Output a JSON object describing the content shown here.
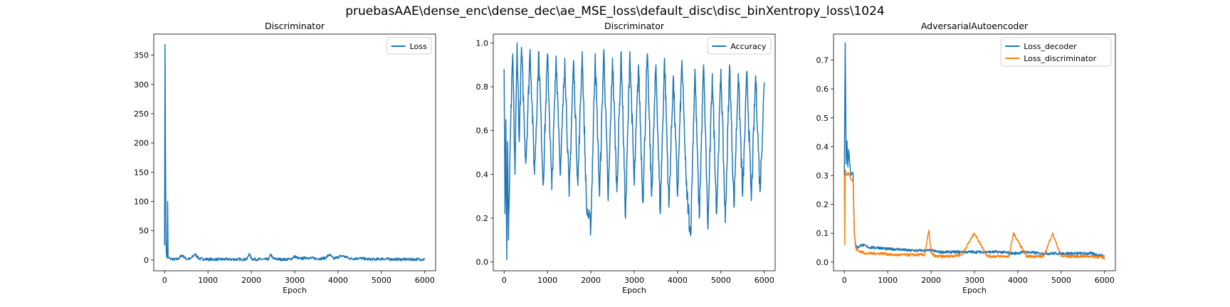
{
  "suptitle": "pruebasAAE\\dense_enc\\dense_dec\\ae_MSE_loss\\default_disc\\disc_binXentropy_loss\\1024",
  "chart_data": [
    {
      "type": "line",
      "title": "Discriminator",
      "xlabel": "Epoch",
      "ylabel": "",
      "xlim": [
        -250,
        6250
      ],
      "ylim": [
        -18.5,
        386
      ],
      "xticks": [
        0,
        1000,
        2000,
        3000,
        4000,
        5000,
        6000
      ],
      "yticks": [
        0,
        50,
        100,
        150,
        200,
        250,
        300,
        350
      ],
      "legend_position": "upper right",
      "series": [
        {
          "name": "Loss",
          "color": "#1f77b4",
          "x": [
            0,
            10,
            20,
            30,
            40,
            50,
            60,
            70,
            80,
            100,
            150,
            200,
            300,
            400,
            500,
            600,
            700,
            800,
            1000,
            1200,
            1500,
            1900,
            1950,
            2000,
            2100,
            2300,
            2400,
            2450,
            2500,
            2700,
            2900,
            3000,
            3100,
            3300,
            3500,
            3700,
            3800,
            3900,
            4000,
            4100,
            4300,
            4500,
            4700,
            4900,
            5000,
            5300,
            5600,
            5800,
            6000
          ],
          "values": [
            25,
            368,
            200,
            40,
            10,
            5,
            3,
            100,
            5,
            3,
            2,
            1,
            1,
            8,
            2,
            2,
            10,
            2,
            1,
            1,
            1,
            1,
            11,
            2,
            1,
            1,
            1,
            10,
            2,
            1,
            1,
            6,
            2,
            4,
            2,
            3,
            9,
            2,
            5,
            7,
            2,
            3,
            1,
            1,
            2,
            1,
            1,
            1,
            1
          ]
        }
      ]
    },
    {
      "type": "line",
      "title": "Discriminator",
      "xlabel": "Epoch",
      "ylabel": "",
      "xlim": [
        -250,
        6250
      ],
      "ylim": [
        -0.04,
        1.04
      ],
      "xticks": [
        0,
        1000,
        2000,
        3000,
        4000,
        5000,
        6000
      ],
      "yticks": [
        0.0,
        0.2,
        0.4,
        0.6,
        0.8,
        1.0
      ],
      "legend_position": "upper right",
      "series": [
        {
          "name": "Accuracy",
          "color": "#1f77b4",
          "x": [
            0,
            20,
            40,
            60,
            80,
            100,
            150,
            200,
            250,
            300,
            350,
            400,
            500,
            600,
            700,
            800,
            900,
            1000,
            1100,
            1200,
            1300,
            1400,
            1500,
            1600,
            1700,
            1800,
            1900,
            1950,
            2000,
            2100,
            2200,
            2300,
            2400,
            2500,
            2600,
            2700,
            2800,
            2900,
            3000,
            3100,
            3200,
            3300,
            3400,
            3500,
            3600,
            3700,
            3800,
            3900,
            4000,
            4100,
            4200,
            4300,
            4400,
            4500,
            4600,
            4700,
            4800,
            4900,
            5000,
            5100,
            5200,
            5300,
            5400,
            5500,
            5600,
            5700,
            5800,
            5900,
            6000
          ],
          "values": [
            0.88,
            0.22,
            0.65,
            0.01,
            0.55,
            0.1,
            0.62,
            0.95,
            0.4,
            1.0,
            0.55,
            0.98,
            0.45,
            0.97,
            0.4,
            0.96,
            0.35,
            0.95,
            0.33,
            0.94,
            0.4,
            0.93,
            0.3,
            0.92,
            0.35,
            0.96,
            0.25,
            0.2,
            0.16,
            0.95,
            0.3,
            0.97,
            0.28,
            0.93,
            0.32,
            0.96,
            0.2,
            0.96,
            0.35,
            0.9,
            0.27,
            0.95,
            0.3,
            0.9,
            0.22,
            0.93,
            0.25,
            0.85,
            0.3,
            0.92,
            0.35,
            0.12,
            0.88,
            0.2,
            0.9,
            0.15,
            0.86,
            0.22,
            0.88,
            0.18,
            0.9,
            0.25,
            0.86,
            0.3,
            0.87,
            0.28,
            0.85,
            0.32,
            0.82
          ]
        }
      ]
    },
    {
      "type": "line",
      "title": "AdversarialAutoencoder",
      "xlabel": "Epoch",
      "ylabel": "",
      "xlim": [
        -250,
        6250
      ],
      "ylim": [
        -0.03,
        0.79
      ],
      "xticks": [
        0,
        1000,
        2000,
        3000,
        4000,
        5000,
        6000
      ],
      "yticks": [
        0.0,
        0.1,
        0.2,
        0.3,
        0.4,
        0.5,
        0.6,
        0.7
      ],
      "legend_position": "upper right",
      "series": [
        {
          "name": "Loss_decoder",
          "color": "#1f77b4",
          "x": [
            0,
            20,
            40,
            60,
            80,
            100,
            150,
            200,
            230,
            260,
            300,
            400,
            600,
            800,
            1000,
            1200,
            1500,
            1800,
            2000,
            2200,
            2500,
            2800,
            3000,
            3300,
            3600,
            3900,
            4200,
            4500,
            4800,
            5100,
            5400,
            5700,
            6000
          ],
          "values": [
            0.3,
            0.76,
            0.34,
            0.42,
            0.33,
            0.39,
            0.3,
            0.31,
            0.1,
            0.06,
            0.05,
            0.06,
            0.05,
            0.05,
            0.045,
            0.045,
            0.04,
            0.04,
            0.04,
            0.035,
            0.035,
            0.035,
            0.035,
            0.035,
            0.035,
            0.03,
            0.035,
            0.03,
            0.03,
            0.03,
            0.03,
            0.03,
            0.02
          ]
        },
        {
          "name": "Loss_discriminator",
          "color": "#ff7f0e",
          "x": [
            0,
            10,
            20,
            50,
            100,
            150,
            200,
            230,
            260,
            300,
            400,
            500,
            700,
            900,
            1100,
            1300,
            1500,
            1700,
            1850,
            1950,
            2000,
            2100,
            2400,
            2700,
            3000,
            3300,
            3600,
            3800,
            3900,
            4200,
            4600,
            4800,
            5000,
            5200,
            5400,
            5700,
            6000
          ],
          "values": [
            0.3,
            0.06,
            0.32,
            0.3,
            0.31,
            0.29,
            0.28,
            0.1,
            0.05,
            0.04,
            0.035,
            0.03,
            0.03,
            0.03,
            0.025,
            0.025,
            0.025,
            0.025,
            0.025,
            0.11,
            0.03,
            0.02,
            0.02,
            0.025,
            0.1,
            0.02,
            0.02,
            0.02,
            0.1,
            0.02,
            0.02,
            0.1,
            0.02,
            0.02,
            0.02,
            0.02,
            0.015
          ]
        }
      ]
    }
  ]
}
